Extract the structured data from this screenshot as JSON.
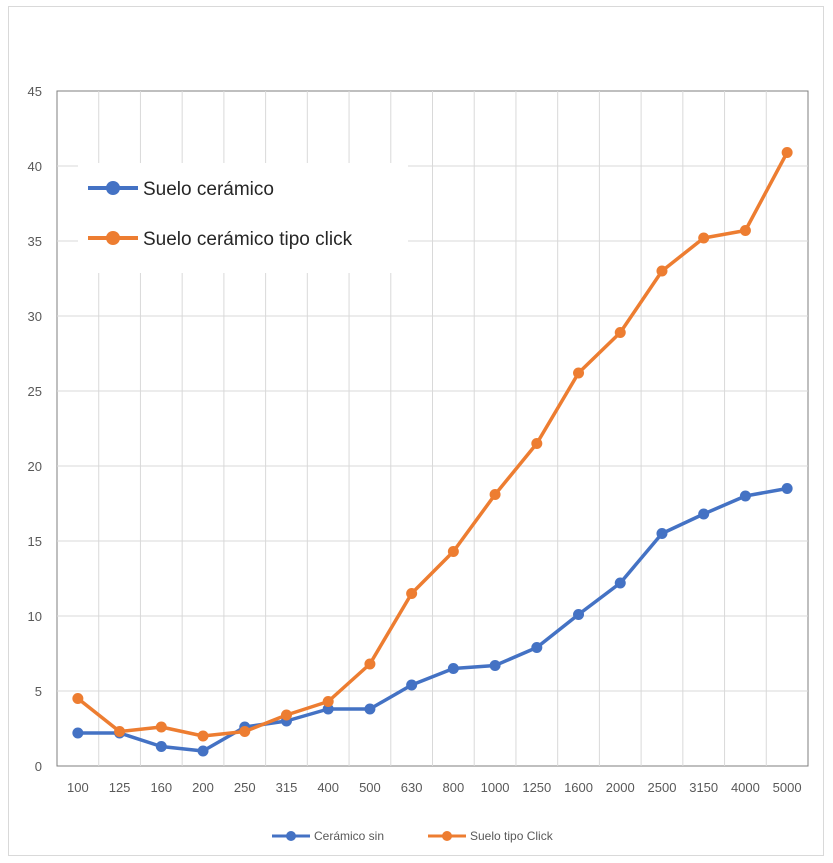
{
  "chart_data": {
    "type": "line",
    "categories": [
      "100",
      "125",
      "160",
      "200",
      "250",
      "315",
      "400",
      "500",
      "630",
      "800",
      "1000",
      "1250",
      "1600",
      "2000",
      "2500",
      "3150",
      "4000",
      "5000"
    ],
    "ylim": [
      0,
      45
    ],
    "yticks": [
      0,
      5,
      10,
      15,
      20,
      25,
      30,
      35,
      40,
      45
    ],
    "grid": true,
    "series": [
      {
        "name": "Cerámico sin",
        "color": "#4472C4",
        "values": [
          2.2,
          2.2,
          1.3,
          1.0,
          2.6,
          3.0,
          3.8,
          3.8,
          5.4,
          6.5,
          6.7,
          7.9,
          10.1,
          12.2,
          15.5,
          16.8,
          18.0,
          18.5
        ]
      },
      {
        "name": "Suelo tipo Click",
        "color": "#ED7D31",
        "values": [
          4.5,
          2.3,
          2.6,
          2.0,
          2.3,
          3.4,
          4.3,
          6.8,
          11.5,
          14.3,
          18.1,
          21.5,
          26.2,
          28.9,
          33.0,
          35.2,
          35.7,
          40.9
        ]
      }
    ],
    "inner_legend": [
      {
        "label": "Suelo cerámico",
        "color": "#4472C4"
      },
      {
        "label": "Suelo cerámico tipo click",
        "color": "#ED7D31"
      }
    ],
    "bottom_legend": [
      {
        "label": "Cerámico sin",
        "color": "#4472C4"
      },
      {
        "label": "Suelo tipo Click",
        "color": "#ED7D31"
      }
    ]
  }
}
